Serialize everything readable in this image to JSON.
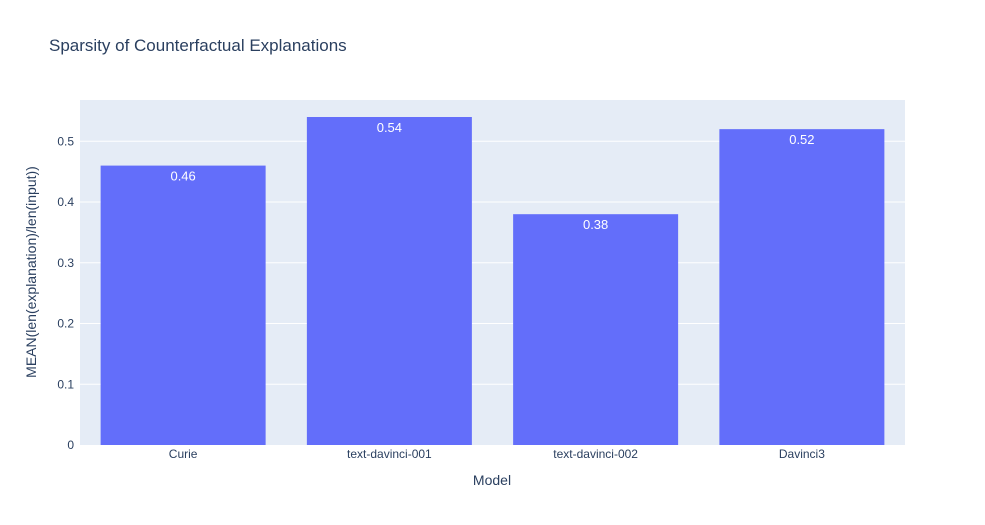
{
  "chart_data": {
    "type": "bar",
    "title": "Sparsity of Counterfactual Explanations",
    "xlabel": "Model",
    "ylabel": "MEAN(len(explanation)/len(input))",
    "categories": [
      "Curie",
      "text-davinci-001",
      "text-davinci-002",
      "Davinci3"
    ],
    "values": [
      0.46,
      0.54,
      0.38,
      0.52
    ],
    "data_labels": [
      "0.46",
      "0.54",
      "0.38",
      "0.52"
    ],
    "ylim": [
      0,
      0.568
    ],
    "yticks": [
      0,
      0.1,
      0.2,
      0.3,
      0.4,
      0.5
    ],
    "ytick_labels": [
      "0",
      "0.1",
      "0.2",
      "0.3",
      "0.4",
      "0.5"
    ],
    "grid": true,
    "colors": {
      "bar": "#636efa",
      "plot_bg": "#e5ecf6",
      "grid": "#ffffff",
      "text": "#2a3f5f"
    }
  }
}
